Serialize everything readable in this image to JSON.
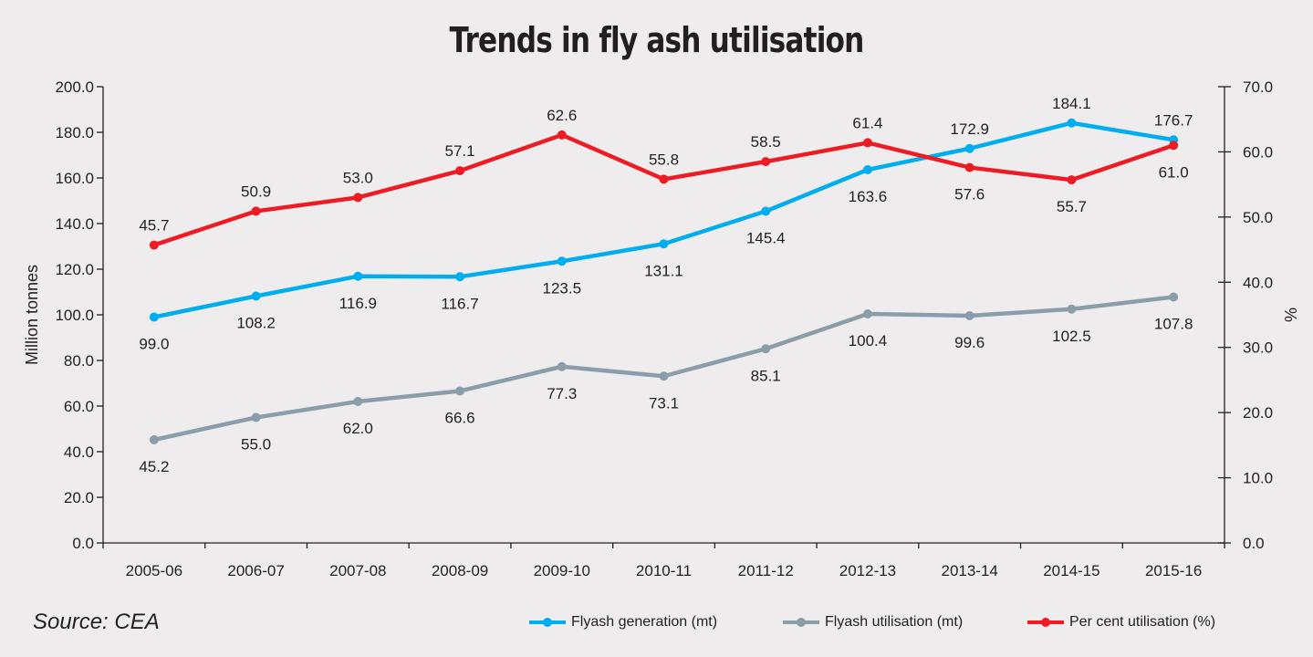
{
  "chart_data": {
    "type": "line",
    "title": "Trends in fly ash utilisation",
    "categories": [
      "2005-06",
      "2006-07",
      "2007-08",
      "2008-09",
      "2009-10",
      "2010-11",
      "2011-12",
      "2012-13",
      "2013-14",
      "2014-15",
      "2015-16"
    ],
    "ylabel": "Million tonnes",
    "y2label": "%",
    "ylim": [
      0,
      200
    ],
    "y2lim": [
      0,
      70
    ],
    "yticks": [
      "0.0",
      "20.0",
      "40.0",
      "60.0",
      "80.0",
      "100.0",
      "120.0",
      "140.0",
      "160.0",
      "180.0",
      "200.0"
    ],
    "y2ticks": [
      "0.0",
      "10.0",
      "20.0",
      "30.0",
      "40.0",
      "50.0",
      "60.0",
      "70.0"
    ],
    "grid": false,
    "legend_position": "bottom-right",
    "series": [
      {
        "name": "Flyash generation (mt)",
        "axis": "left",
        "color": "#00aeef",
        "values": [
          99.0,
          108.2,
          116.9,
          116.7,
          123.5,
          131.1,
          145.4,
          163.6,
          172.9,
          184.1,
          176.7
        ],
        "labels": [
          "99.0",
          "108.2",
          "116.9",
          "116.7",
          "123.5",
          "131.1",
          "145.4",
          "163.6",
          "172.9",
          "184.1",
          "176.7"
        ],
        "label_pos": [
          "below",
          "below",
          "below",
          "below",
          "below",
          "below",
          "below",
          "below",
          "above",
          "above",
          "above"
        ]
      },
      {
        "name": "Flyash utilisation (mt)",
        "axis": "left",
        "color": "#8a9ea9",
        "values": [
          45.2,
          55.0,
          62.0,
          66.6,
          77.3,
          73.1,
          85.1,
          100.4,
          99.6,
          102.5,
          107.8
        ],
        "labels": [
          "45.2",
          "55.0",
          "62.0",
          "66.6",
          "77.3",
          "73.1",
          "85.1",
          "100.4",
          "99.6",
          "102.5",
          "107.8"
        ],
        "label_pos": [
          "below",
          "below",
          "below",
          "below",
          "below",
          "below",
          "below",
          "below",
          "below",
          "below",
          "below"
        ]
      },
      {
        "name": "Per cent utilisation (%)",
        "axis": "right",
        "color": "#ed1c24",
        "values": [
          45.7,
          50.9,
          53.0,
          57.1,
          62.6,
          55.8,
          58.5,
          61.4,
          57.6,
          55.7,
          61.0
        ],
        "labels": [
          "45.7",
          "50.9",
          "53.0",
          "57.1",
          "62.6",
          "55.8",
          "58.5",
          "61.4",
          "57.6",
          "55.7",
          "61.0"
        ],
        "label_pos": [
          "above",
          "above",
          "above",
          "above",
          "above",
          "above",
          "above",
          "above",
          "below",
          "below",
          "below"
        ]
      }
    ]
  },
  "source": "Source: CEA"
}
